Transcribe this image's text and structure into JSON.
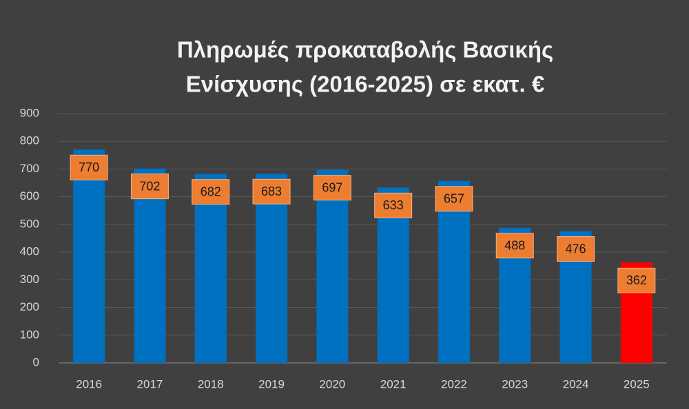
{
  "chart_data": {
    "type": "bar",
    "title_lines": [
      "Πληρωμές προκαταβολής Βασικής",
      "Ενίσχυσης (2016-2025) σε εκατ. €"
    ],
    "categories": [
      "2016",
      "2017",
      "2018",
      "2019",
      "2020",
      "2021",
      "2022",
      "2023",
      "2024",
      "2025"
    ],
    "values": [
      770,
      702,
      682,
      683,
      697,
      633,
      657,
      488,
      476,
      362
    ],
    "colors": [
      "#0070c0",
      "#0070c0",
      "#0070c0",
      "#0070c0",
      "#0070c0",
      "#0070c0",
      "#0070c0",
      "#0070c0",
      "#0070c0",
      "#ff0000"
    ],
    "label_color": "#ed7d31",
    "ylim": [
      0,
      900
    ],
    "yticks": [
      0,
      100,
      200,
      300,
      400,
      500,
      600,
      700,
      800,
      900
    ],
    "grid": true
  }
}
